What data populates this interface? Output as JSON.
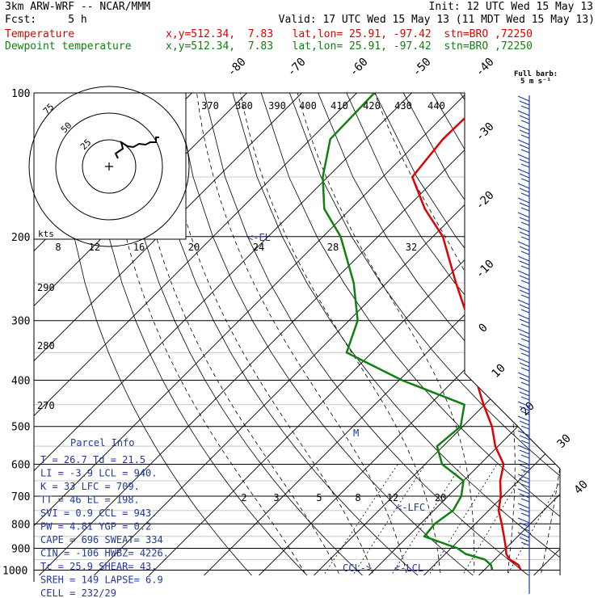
{
  "header": {
    "model": "3km ARW-WRF -- NCAR/MMM",
    "init": "Init: 12 UTC Wed 15 May 13",
    "fcst": "Fcst:     5 h",
    "valid": "Valid: 17 UTC Wed 15 May 13 (11 MDT Wed 15 May 13)",
    "temp_label": "Temperature",
    "temp_loc": "x,y=512.34,  7.83   lat,lon= 25.91, -97.42  stn=BRO ,72250",
    "dew_label": "Dewpoint temperature",
    "dew_loc": "x,y=512.34,  7.83   lat,lon= 25.91, -97.42  stn=BRO ,72250"
  },
  "barb_legend": {
    "line1": "Full barb:",
    "line2": "5 m s⁻¹"
  },
  "hodograph": {
    "units": "kts",
    "ring_labels": [
      "25",
      "50",
      "75"
    ]
  },
  "skewt": {
    "pressure_labels": [
      "100",
      "200",
      "300",
      "400",
      "500",
      "600",
      "700",
      "800",
      "900",
      "1000"
    ],
    "isotherm_labels": [
      "-80",
      "-70",
      "-60",
      "-50",
      "-40",
      "-30",
      "-20",
      "-10",
      "0",
      "10",
      "20",
      "30",
      "40"
    ],
    "theta_labels": [
      "370",
      "380",
      "390",
      "400",
      "410",
      "420",
      "430",
      "440"
    ],
    "thetae_labels": [
      "8",
      "12",
      "16",
      "20",
      "24",
      "28",
      "32"
    ],
    "mixing_ratio_labels": [
      "2",
      "3",
      "5",
      "8",
      "12",
      "20"
    ],
    "dry_adiabat_labels": [
      "290",
      "280",
      "270"
    ],
    "levels": {
      "el": "<-EL",
      "lfc": "<-LFC",
      "lcl": "<-LCL",
      "ccl": "CCL->",
      "m": "M"
    }
  },
  "colors": {
    "temperature": "#e00000",
    "dewpoint": "#108010",
    "parcel_info": "#2038a0",
    "wind_barbs": "#2038a0"
  },
  "parcel_info": {
    "title": "Parcel Info",
    "rows": [
      "T  =   26.7  Td =  21.5",
      "LI =   -3.9  LCL =  940.",
      "K  =     33  LFC =  709.",
      "TT =     46  EL  =  198.",
      "SVI =   0.9  CCL =  943.",
      "PW =   4.81  YGP =   0.2",
      "CAPE =  696  SWEAT=  334",
      "CIN =  -106  HWBZ= 4226.",
      "Tc =   25.9  SHEAR=  43.",
      "SREH =  149  LAPSE=  6.9",
      "CELL = 232/29"
    ]
  },
  "chart_data": {
    "type": "line",
    "title": "",
    "xlabel": "",
    "ylabel": "",
    "y_scale": "log pressure (hPa), inverted",
    "ylim": [
      1000,
      100
    ],
    "series": [
      {
        "name": "Temperature",
        "color": "#e00000",
        "points": [
          [
            1000,
            26.7
          ],
          [
            975,
            25.3
          ],
          [
            950,
            22.7
          ],
          [
            925,
            21.1
          ],
          [
            900,
            20.0
          ],
          [
            850,
            17.5
          ],
          [
            800,
            14.8
          ],
          [
            750,
            11.8
          ],
          [
            700,
            9.6
          ],
          [
            650,
            6.7
          ],
          [
            600,
            4.3
          ],
          [
            550,
            -0.5
          ],
          [
            500,
            -4.7
          ],
          [
            450,
            -10.2
          ],
          [
            400,
            -16.0
          ],
          [
            350,
            -21.4
          ],
          [
            300,
            -28.2
          ],
          [
            250,
            -37.4
          ],
          [
            200,
            -48.2
          ],
          [
            175,
            -56.5
          ],
          [
            150,
            -64.6
          ],
          [
            125,
            -65.9
          ],
          [
            100,
            -65.6
          ]
        ]
      },
      {
        "name": "Dewpoint temperature",
        "color": "#108010",
        "points": [
          [
            1000,
            21.5
          ],
          [
            975,
            20.3
          ],
          [
            950,
            18.2
          ],
          [
            925,
            13.7
          ],
          [
            900,
            11.2
          ],
          [
            850,
            3.0
          ],
          [
            800,
            2.6
          ],
          [
            750,
            3.5
          ],
          [
            700,
            2.4
          ],
          [
            650,
            0.0
          ],
          [
            600,
            -6.9
          ],
          [
            550,
            -11.1
          ],
          [
            500,
            -10.4
          ],
          [
            450,
            -13.7
          ],
          [
            400,
            -29.5
          ],
          [
            350,
            -44.6
          ],
          [
            300,
            -48.4
          ],
          [
            250,
            -56.0
          ],
          [
            200,
            -66.8
          ],
          [
            175,
            -74.8
          ],
          [
            150,
            -80.9
          ],
          [
            125,
            -86.4
          ],
          [
            100,
            -86.8
          ]
        ]
      }
    ]
  }
}
